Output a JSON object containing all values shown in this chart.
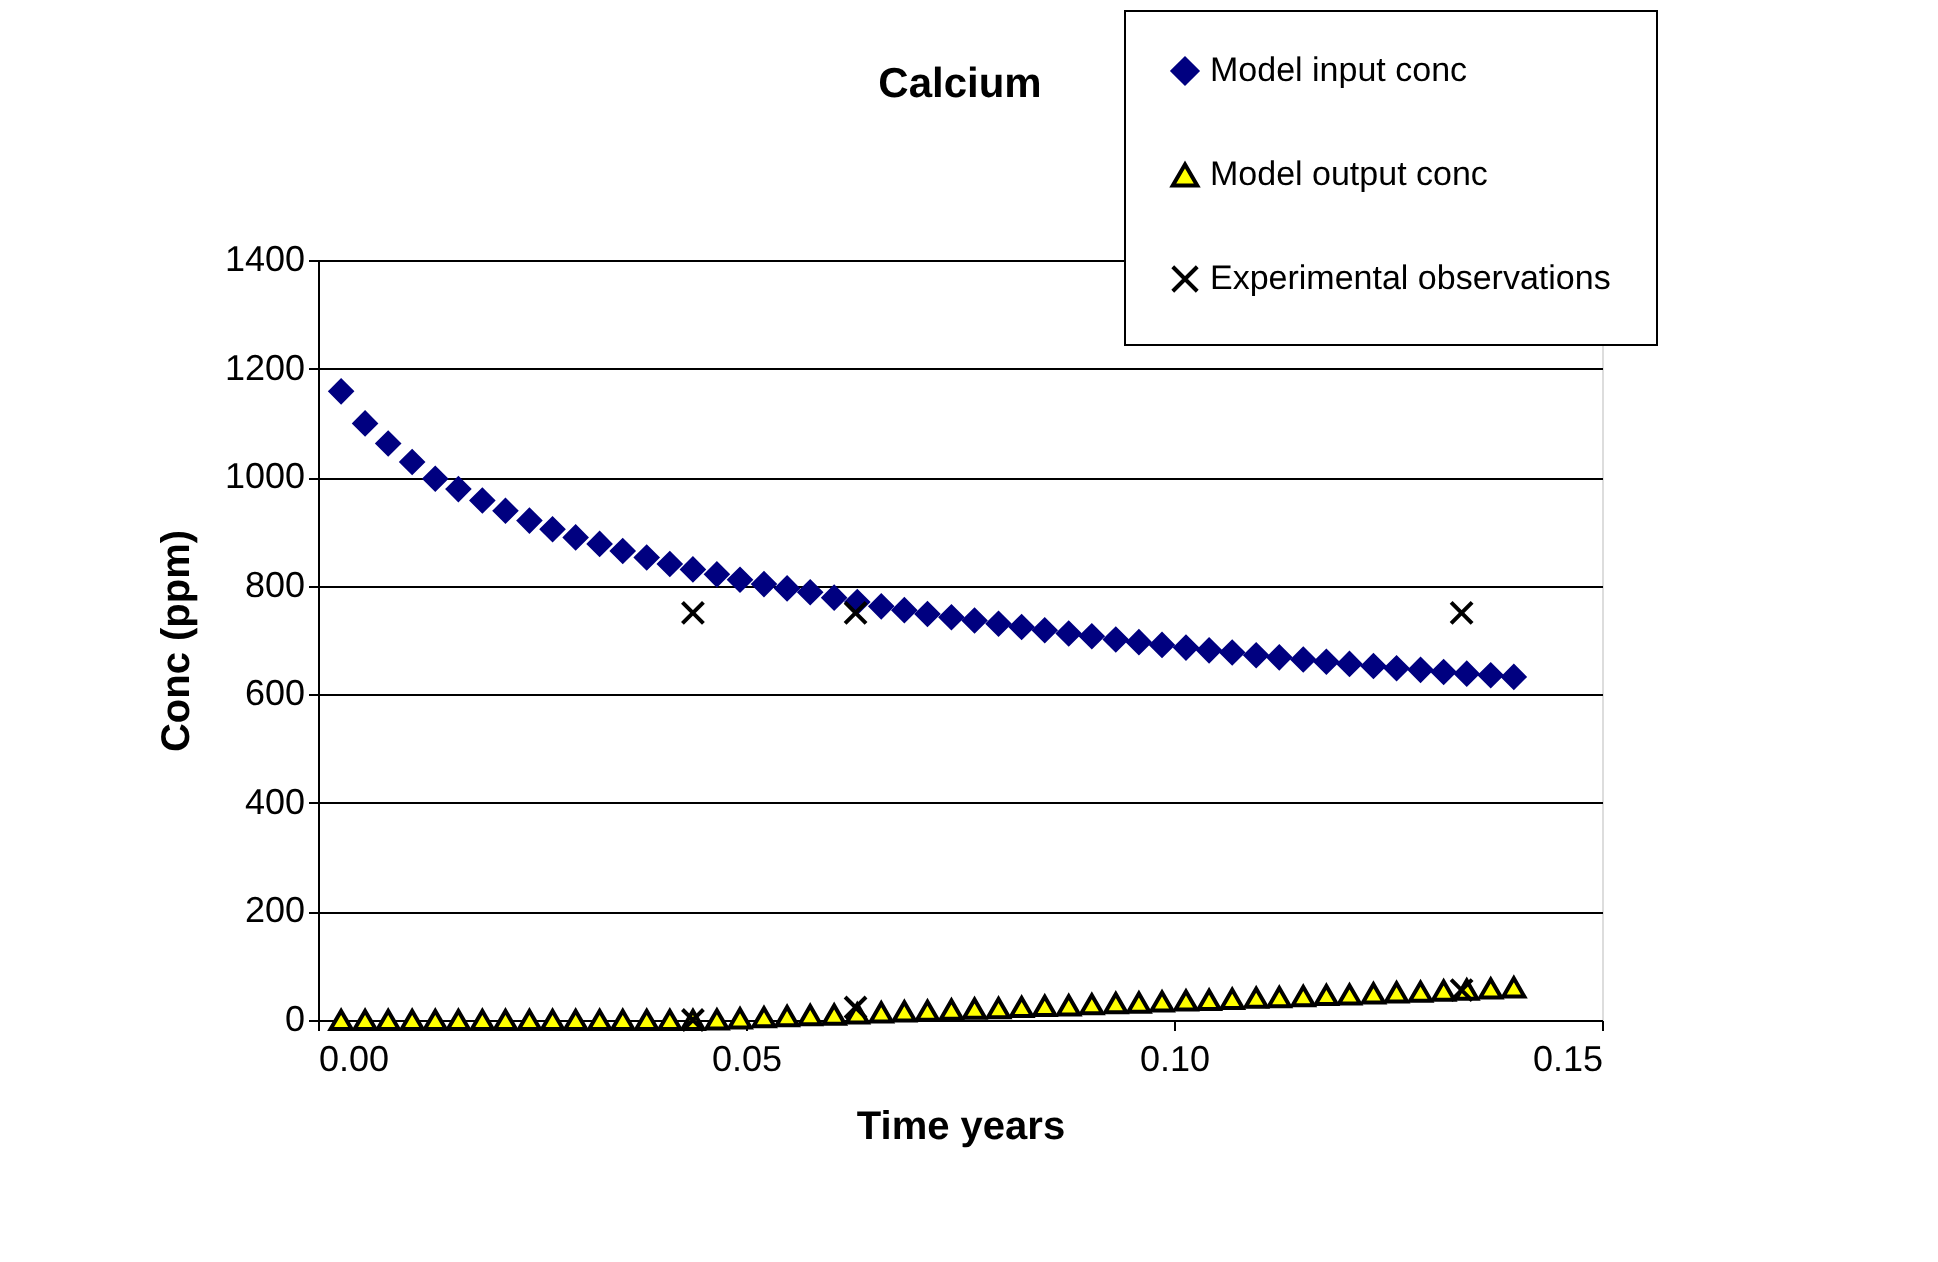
{
  "chart_data": {
    "type": "scatter",
    "title": "Calcium",
    "xlabel": "Time years",
    "ylabel": "Conc (ppm)",
    "xlim": [
      0,
      0.15
    ],
    "ylim": [
      0,
      1400
    ],
    "xticks": [
      {
        "value": 0,
        "label": "0.00"
      },
      {
        "value": 0.05,
        "label": "0.05"
      },
      {
        "value": 0.1,
        "label": "0.10"
      },
      {
        "value": 0.15,
        "label": "0.15"
      }
    ],
    "yticks": [
      0,
      200,
      400,
      600,
      800,
      1000,
      1200,
      1400
    ],
    "grid": "y",
    "legend": "top right",
    "series": [
      {
        "name": "Model input conc",
        "color": "#000080",
        "marker": "diamond",
        "x": [
          0.0027,
          0.0055,
          0.0082,
          0.011,
          0.0137,
          0.0164,
          0.0192,
          0.0219,
          0.0247,
          0.0274,
          0.0301,
          0.0329,
          0.0356,
          0.0384,
          0.0411,
          0.0438,
          0.0466,
          0.0493,
          0.0521,
          0.0548,
          0.0575,
          0.0603,
          0.063,
          0.0658,
          0.0685,
          0.0712,
          0.074,
          0.0767,
          0.0795,
          0.0822,
          0.0849,
          0.0877,
          0.0904,
          0.0932,
          0.0959,
          0.0986,
          0.1014,
          0.1041,
          0.1068,
          0.1096,
          0.1123,
          0.1151,
          0.1178,
          0.1205,
          0.1233,
          0.126,
          0.1288,
          0.1315,
          0.1342,
          0.137,
          0.1397
        ],
        "values": [
          1158,
          1099,
          1062,
          1028,
          997,
          978,
          957,
          938,
          920,
          904,
          889,
          877,
          864,
          852,
          840,
          830,
          821,
          811,
          803,
          795,
          788,
          778,
          770,
          762,
          755,
          748,
          742,
          736,
          730,
          724,
          718,
          712,
          707,
          701,
          696,
          691,
          686,
          681,
          677,
          672,
          668,
          664,
          660,
          656,
          652,
          648,
          645,
          641,
          638,
          635,
          632
        ]
      },
      {
        "name": "Model output conc",
        "color": "#ffff00",
        "marker": "triangle",
        "x": [
          0.0027,
          0.0055,
          0.0082,
          0.011,
          0.0137,
          0.0164,
          0.0192,
          0.0219,
          0.0247,
          0.0274,
          0.0301,
          0.0329,
          0.0356,
          0.0384,
          0.0411,
          0.0438,
          0.0466,
          0.0493,
          0.0521,
          0.0548,
          0.0575,
          0.0603,
          0.063,
          0.0658,
          0.0685,
          0.0712,
          0.074,
          0.0767,
          0.0795,
          0.0822,
          0.0849,
          0.0877,
          0.0904,
          0.0932,
          0.0959,
          0.0986,
          0.1014,
          0.1041,
          0.1068,
          0.1096,
          0.1123,
          0.1151,
          0.1178,
          0.1205,
          0.1233,
          0.126,
          0.1288,
          0.1315,
          0.1342,
          0.137,
          0.1397
        ],
        "values": [
          0,
          0,
          0,
          0,
          0,
          0,
          0,
          0,
          0,
          0,
          0,
          0,
          0,
          0,
          0,
          0,
          1,
          3,
          5,
          7,
          9,
          10,
          12,
          14,
          16,
          17,
          19,
          21,
          22,
          24,
          26,
          27,
          29,
          31,
          32,
          34,
          36,
          37,
          39,
          41,
          42,
          44,
          46,
          47,
          49,
          51,
          52,
          54,
          56,
          58,
          60
        ]
      },
      {
        "name": "Experimental observations",
        "color": "#000000",
        "marker": "cross",
        "x": [
          0.0438,
          0.0628,
          0.1336,
          0.0438,
          0.0628,
          0.1336
        ],
        "values": [
          750,
          750,
          750,
          0,
          23,
          55
        ]
      }
    ]
  }
}
